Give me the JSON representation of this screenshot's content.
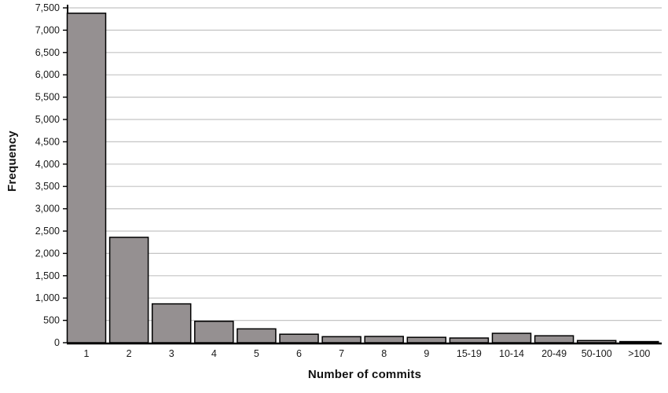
{
  "chart_data": {
    "type": "bar",
    "title": "",
    "xlabel": "Number of commits",
    "ylabel": "Frequency",
    "categories": [
      "1",
      "2",
      "3",
      "4",
      "5",
      "6",
      "7",
      "8",
      "9",
      "15-19",
      "10-14",
      "20-49",
      "50-100",
      ">100"
    ],
    "values": [
      7380,
      2360,
      870,
      480,
      310,
      190,
      135,
      140,
      120,
      105,
      210,
      155,
      48,
      25
    ],
    "ylim": [
      0,
      7500
    ],
    "ytick_step": 500,
    "ytick_labels": [
      "0",
      "500",
      "1,000",
      "1,500",
      "2,000",
      "2,500",
      "3,000",
      "3,500",
      "4,000",
      "4,500",
      "5,000",
      "5,500",
      "6,000",
      "6,500",
      "7,000",
      "7,500"
    ],
    "grid": "horizontal",
    "legend": "none",
    "colors": {
      "bar_fill": "#959091",
      "bar_stroke": "#000000",
      "grid_line": "#c4c4c4",
      "axis_line": "#000000",
      "text": "#1a1a1a",
      "background": "#ffffff"
    }
  }
}
